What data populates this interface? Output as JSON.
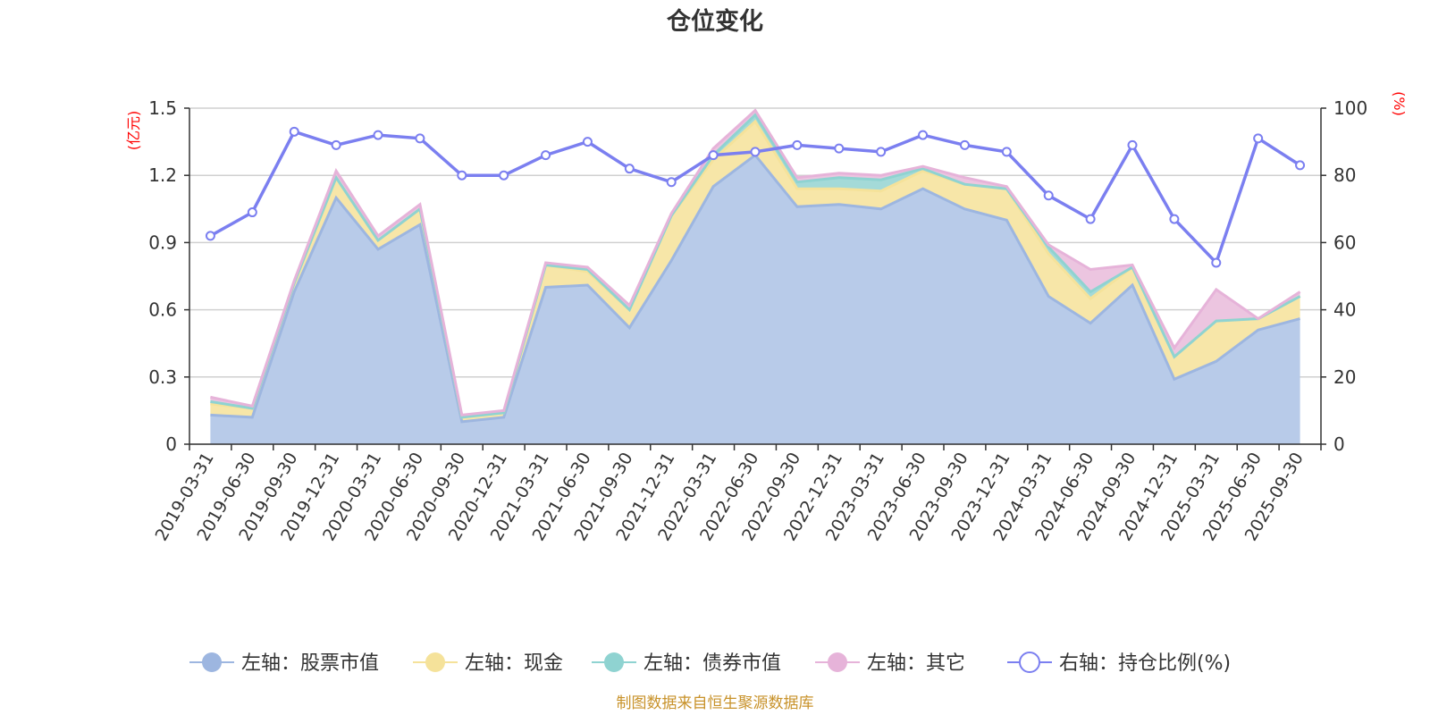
{
  "chart_data": {
    "type": "area",
    "title": "仓位变化",
    "left_unit": "(亿元)",
    "right_unit": "(%)",
    "source_note": "制图数据来自恒生聚源数据库",
    "left_axis": {
      "ylim": [
        0,
        1.5
      ],
      "ticks": [
        "0",
        "0.3",
        "0.6",
        "0.9",
        "1.2",
        "1.5"
      ],
      "tick_values": [
        0,
        0.3,
        0.6,
        0.9,
        1.2,
        1.5
      ]
    },
    "right_axis": {
      "ylim": [
        0,
        100
      ],
      "ticks": [
        "0",
        "20",
        "40",
        "60",
        "80",
        "100"
      ],
      "tick_values": [
        0,
        20,
        40,
        60,
        80,
        100
      ]
    },
    "grid": true,
    "legend_position": "bottom",
    "categories": [
      "2019-03-31",
      "2019-06-30",
      "2019-09-30",
      "2019-12-31",
      "2020-03-31",
      "2020-06-30",
      "2020-09-30",
      "2020-12-31",
      "2021-03-31",
      "2021-06-30",
      "2021-09-30",
      "2021-12-31",
      "2022-03-31",
      "2022-06-30",
      "2022-09-30",
      "2022-12-31",
      "2023-03-31",
      "2023-06-30",
      "2023-09-30",
      "2023-12-31",
      "2024-03-31",
      "2024-06-30",
      "2024-09-30",
      "2024-12-31",
      "2025-03-31",
      "2025-06-30",
      "2025-09-30"
    ],
    "stacked_series": [
      {
        "name": "左轴：股票市值",
        "axis": "left",
        "color": "#9db6e0",
        "fill": "#b8cbe9",
        "values": [
          0.13,
          0.12,
          0.68,
          1.1,
          0.87,
          0.98,
          0.1,
          0.12,
          0.7,
          0.71,
          0.52,
          0.82,
          1.15,
          1.29,
          1.06,
          1.07,
          1.05,
          1.14,
          1.05,
          1.0,
          0.66,
          0.54,
          0.71,
          0.29,
          0.37,
          0.51,
          0.56
        ]
      },
      {
        "name": "左轴：现金",
        "axis": "left",
        "color": "#f5e29a",
        "fill": "#f7e6a8",
        "values": [
          0.05,
          0.04,
          0.04,
          0.09,
          0.04,
          0.07,
          0.02,
          0.02,
          0.1,
          0.06,
          0.08,
          0.2,
          0.12,
          0.15,
          0.08,
          0.07,
          0.08,
          0.08,
          0.11,
          0.14,
          0.19,
          0.11,
          0.08,
          0.1,
          0.18,
          0.05,
          0.1
        ]
      },
      {
        "name": "左轴：债券市值",
        "axis": "left",
        "color": "#8fd3d1",
        "fill": "#a4dad8",
        "values": [
          0.01,
          0.0,
          0.0,
          0.0,
          0.0,
          0.0,
          0.0,
          0.0,
          0.0,
          0.01,
          0.0,
          0.0,
          0.02,
          0.03,
          0.03,
          0.05,
          0.05,
          0.01,
          0.0,
          0.0,
          0.03,
          0.03,
          0.0,
          0.0,
          0.0,
          0.0,
          0.0
        ]
      },
      {
        "name": "左轴：其它",
        "axis": "left",
        "color": "#e6b3d9",
        "fill": "#ecc5e0",
        "values": [
          0.02,
          0.01,
          0.01,
          0.03,
          0.02,
          0.02,
          0.01,
          0.01,
          0.01,
          0.01,
          0.02,
          0.01,
          0.03,
          0.02,
          0.02,
          0.02,
          0.02,
          0.01,
          0.03,
          0.01,
          0.01,
          0.1,
          0.01,
          0.04,
          0.14,
          0.0,
          0.02
        ]
      }
    ],
    "line_series": {
      "name": "右轴：持仓比例(%)",
      "axis": "right",
      "color": "#7b7ff0",
      "values": [
        62,
        69,
        93,
        89,
        92,
        91,
        80,
        80,
        86,
        90,
        82,
        78,
        86,
        87,
        89,
        88,
        87,
        92,
        89,
        87,
        74,
        67,
        89,
        67,
        54,
        91,
        83
      ]
    }
  }
}
